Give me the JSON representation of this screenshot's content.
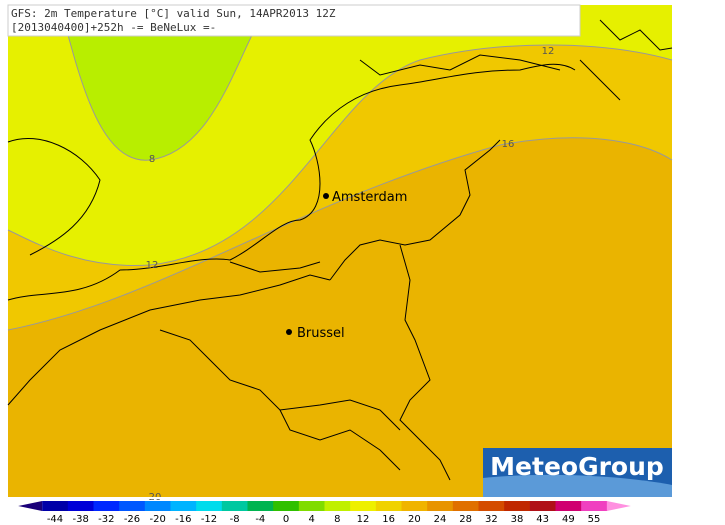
{
  "header": {
    "line1": "GFS: 2m Temperature [°C] valid Sun, 14APR2013 12Z",
    "line2": "[2013040400]+252h -= BeNeLux =-"
  },
  "cities": [
    {
      "label": "Amsterdam"
    },
    {
      "label": "Brussel"
    }
  ],
  "contour_labels": [
    "8",
    "12",
    "12",
    "16",
    "20"
  ],
  "logo": "MeteoGroup",
  "legend": {
    "labels": [
      -44,
      -38,
      -32,
      -26,
      -20,
      -16,
      -12,
      -8,
      -4,
      0,
      4,
      8,
      12,
      16,
      20,
      24,
      28,
      32,
      38,
      43,
      49,
      55
    ],
    "colors": [
      "#1a0078",
      "#0000a8",
      "#0000d8",
      "#0028ff",
      "#0058ff",
      "#0088ff",
      "#00b4ff",
      "#00dcec",
      "#00c8a0",
      "#00b450",
      "#30c000",
      "#80dc00",
      "#c0f000",
      "#eef000",
      "#f0d200",
      "#f0b400",
      "#e89400",
      "#e07000",
      "#d44c00",
      "#c02800",
      "#b01018",
      "#d00070",
      "#f040c0",
      "#ff90e0"
    ]
  }
}
